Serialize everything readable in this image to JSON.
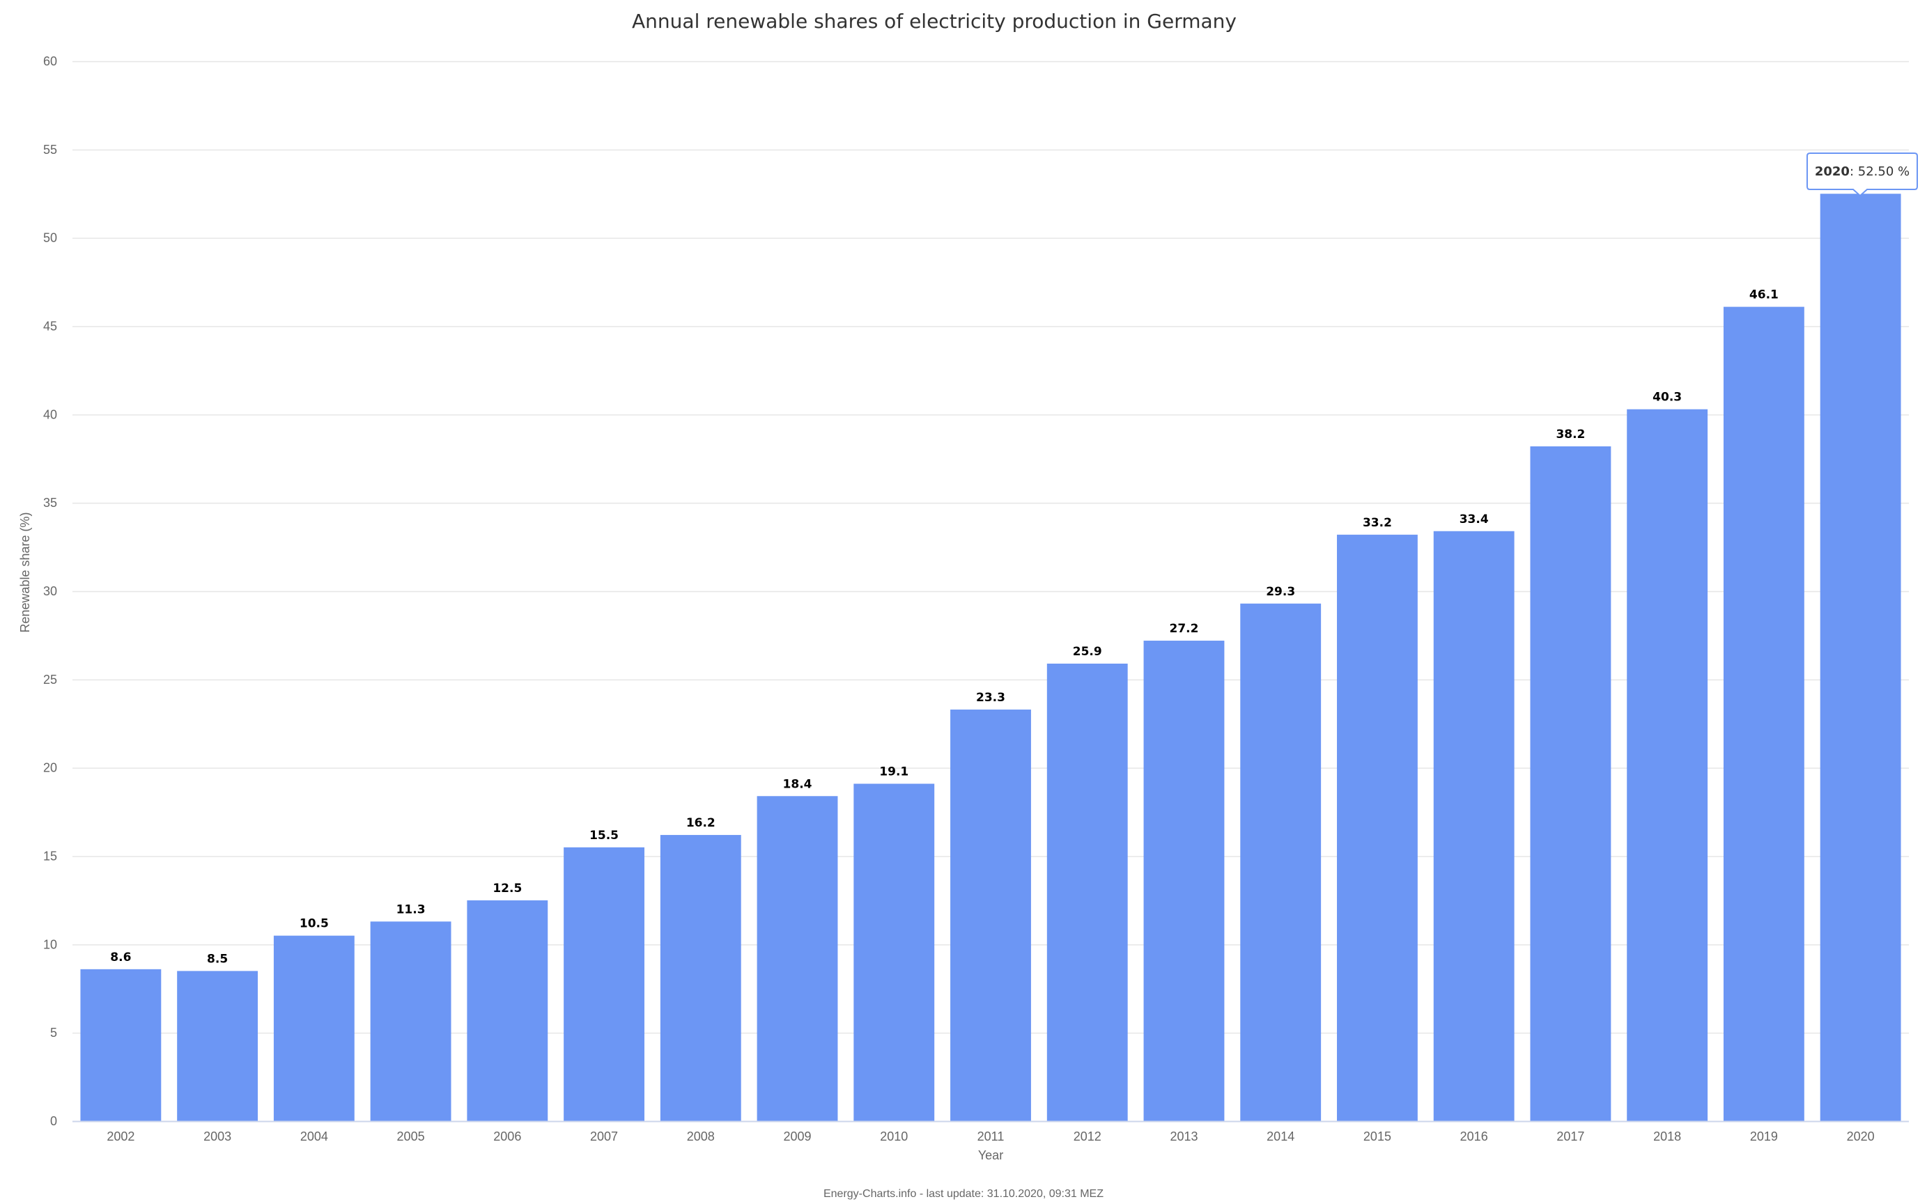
{
  "chart_data": {
    "type": "bar",
    "title": "Annual renewable shares of electricity production in Germany",
    "xlabel": "Year",
    "ylabel": "Renewable share (%)",
    "ylim": [
      0,
      60
    ],
    "yticks": [
      0,
      5,
      10,
      15,
      20,
      25,
      30,
      35,
      40,
      45,
      50,
      55,
      60
    ],
    "grid": true,
    "categories": [
      "2002",
      "2003",
      "2004",
      "2005",
      "2006",
      "2007",
      "2008",
      "2009",
      "2010",
      "2011",
      "2012",
      "2013",
      "2014",
      "2015",
      "2016",
      "2017",
      "2018",
      "2019",
      "2020"
    ],
    "values": [
      8.6,
      8.5,
      10.5,
      11.3,
      12.5,
      15.5,
      16.2,
      18.4,
      19.1,
      23.3,
      25.9,
      27.2,
      29.3,
      33.2,
      33.4,
      38.2,
      40.3,
      46.1,
      52.5
    ],
    "data_labels": [
      "8.6",
      "8.5",
      "10.5",
      "11.3",
      "12.5",
      "15.5",
      "16.2",
      "18.4",
      "19.1",
      "23.3",
      "25.9",
      "27.2",
      "29.3",
      "33.2",
      "33.4",
      "38.2",
      "40.3",
      "46.1",
      ""
    ],
    "bar_color": "#6c96f4",
    "tooltip": {
      "category": "2020",
      "value_text": "52.50 %"
    },
    "credit": "Energy-Charts.info - last update: 31.10.2020, 09:31 MEZ"
  }
}
